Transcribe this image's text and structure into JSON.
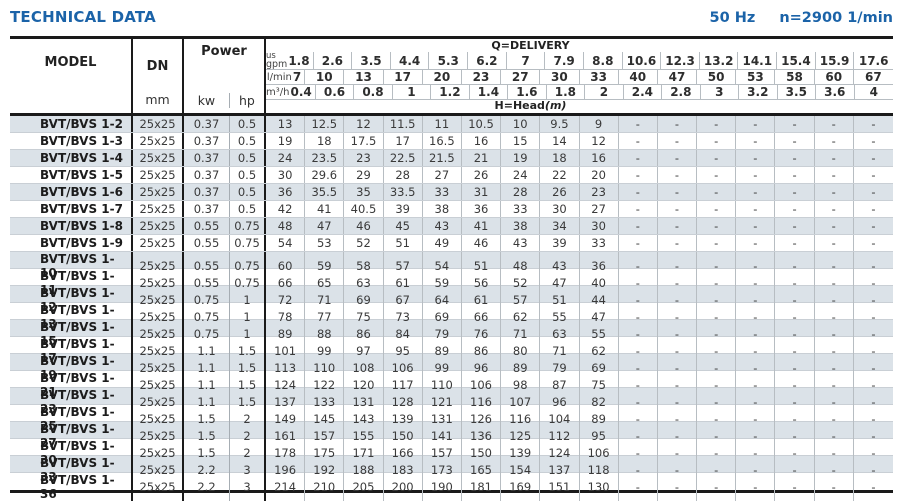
{
  "title": "TECHNICAL DATA",
  "frequency": "50 Hz",
  "speed": "n=2900 1/min",
  "colors": {
    "accent_blue": "#1b63a8",
    "row_stripe": "#dbe2e8",
    "border_dark": "#1a1a1a"
  },
  "table": {
    "model_header": "MODEL",
    "dn_header": "DN",
    "dn_unit": "mm",
    "power_header": "Power",
    "kw_label": "kw",
    "hp_label": "hp",
    "delivery_label": "Q=DELIVERY",
    "head_label": "H=Head",
    "head_unit": "(m)",
    "unit_rows": [
      {
        "label_top": "us",
        "label": "gpm",
        "values": [
          "1.8",
          "2.6",
          "3.5",
          "4.4",
          "5.3",
          "6.2",
          "7",
          "7.9",
          "8.8",
          "10.6",
          "12.3",
          "13.2",
          "14.1",
          "15.4",
          "15.9",
          "17.6"
        ]
      },
      {
        "label": "l/min",
        "values": [
          "7",
          "10",
          "13",
          "17",
          "20",
          "23",
          "27",
          "30",
          "33",
          "40",
          "47",
          "50",
          "53",
          "58",
          "60",
          "67"
        ]
      },
      {
        "label": "m³/h",
        "values": [
          "0.4",
          "0.6",
          "0.8",
          "1",
          "1.2",
          "1.4",
          "1.6",
          "1.8",
          "2",
          "2.4",
          "2.8",
          "3",
          "3.2",
          "3.5",
          "3.6",
          "4"
        ]
      }
    ],
    "rows": [
      {
        "model": "BVT/BVS 1-2",
        "dn": "25x25",
        "kw": "0.37",
        "hp": "0.5",
        "head": [
          "13",
          "12.5",
          "12",
          "11.5",
          "11",
          "10.5",
          "10",
          "9.5",
          "9",
          "-",
          "-",
          "-",
          "-",
          "-",
          "-",
          "-"
        ]
      },
      {
        "model": "BVT/BVS 1-3",
        "dn": "25x25",
        "kw": "0.37",
        "hp": "0.5",
        "head": [
          "19",
          "18",
          "17.5",
          "17",
          "16.5",
          "16",
          "15",
          "14",
          "12",
          "-",
          "-",
          "-",
          "-",
          "-",
          "-",
          "-"
        ]
      },
      {
        "model": "BVT/BVS 1-4",
        "dn": "25x25",
        "kw": "0.37",
        "hp": "0.5",
        "head": [
          "24",
          "23.5",
          "23",
          "22.5",
          "21.5",
          "21",
          "19",
          "18",
          "16",
          "-",
          "-",
          "-",
          "-",
          "-",
          "-",
          "-"
        ]
      },
      {
        "model": "BVT/BVS 1-5",
        "dn": "25x25",
        "kw": "0.37",
        "hp": "0.5",
        "head": [
          "30",
          "29.6",
          "29",
          "28",
          "27",
          "26",
          "24",
          "22",
          "20",
          "-",
          "-",
          "-",
          "-",
          "-",
          "-",
          "-"
        ]
      },
      {
        "model": "BVT/BVS 1-6",
        "dn": "25x25",
        "kw": "0.37",
        "hp": "0.5",
        "head": [
          "36",
          "35.5",
          "35",
          "33.5",
          "33",
          "31",
          "28",
          "26",
          "23",
          "-",
          "-",
          "-",
          "-",
          "-",
          "-",
          "-"
        ]
      },
      {
        "model": "BVT/BVS 1-7",
        "dn": "25x25",
        "kw": "0.37",
        "hp": "0.5",
        "head": [
          "42",
          "41",
          "40.5",
          "39",
          "38",
          "36",
          "33",
          "30",
          "27",
          "-",
          "-",
          "-",
          "-",
          "-",
          "-",
          "-"
        ]
      },
      {
        "model": "BVT/BVS 1-8",
        "dn": "25x25",
        "kw": "0.55",
        "hp": "0.75",
        "head": [
          "48",
          "47",
          "46",
          "45",
          "43",
          "41",
          "38",
          "34",
          "30",
          "-",
          "-",
          "-",
          "-",
          "-",
          "-",
          "-"
        ]
      },
      {
        "model": "BVT/BVS 1-9",
        "dn": "25x25",
        "kw": "0.55",
        "hp": "0.75",
        "head": [
          "54",
          "53",
          "52",
          "51",
          "49",
          "46",
          "43",
          "39",
          "33",
          "-",
          "-",
          "-",
          "-",
          "-",
          "-",
          "-"
        ]
      },
      {
        "model": "BVT/BVS 1-10",
        "dn": "25x25",
        "kw": "0.55",
        "hp": "0.75",
        "head": [
          "60",
          "59",
          "58",
          "57",
          "54",
          "51",
          "48",
          "43",
          "36",
          "-",
          "-",
          "-",
          "-",
          "-",
          "-",
          "-"
        ]
      },
      {
        "model": "BVT/BVS 1-11",
        "dn": "25x25",
        "kw": "0.55",
        "hp": "0.75",
        "head": [
          "66",
          "65",
          "63",
          "61",
          "59",
          "56",
          "52",
          "47",
          "40",
          "-",
          "-",
          "-",
          "-",
          "-",
          "-",
          "-"
        ]
      },
      {
        "model": "BVT/BVS 1-12",
        "dn": "25x25",
        "kw": "0.75",
        "hp": "1",
        "head": [
          "72",
          "71",
          "69",
          "67",
          "64",
          "61",
          "57",
          "51",
          "44",
          "-",
          "-",
          "-",
          "-",
          "-",
          "-",
          "-"
        ]
      },
      {
        "model": "BVT/BVS 1-13",
        "dn": "25x25",
        "kw": "0.75",
        "hp": "1",
        "head": [
          "78",
          "77",
          "75",
          "73",
          "69",
          "66",
          "62",
          "55",
          "47",
          "-",
          "-",
          "-",
          "-",
          "-",
          "-",
          "-"
        ]
      },
      {
        "model": "BVT/BVS 1-15",
        "dn": "25x25",
        "kw": "0.75",
        "hp": "1",
        "head": [
          "89",
          "88",
          "86",
          "84",
          "79",
          "76",
          "71",
          "63",
          "55",
          "-",
          "-",
          "-",
          "-",
          "-",
          "-",
          "-"
        ]
      },
      {
        "model": "BVT/BVS 1-17",
        "dn": "25x25",
        "kw": "1.1",
        "hp": "1.5",
        "head": [
          "101",
          "99",
          "97",
          "95",
          "89",
          "86",
          "80",
          "71",
          "62",
          "-",
          "-",
          "-",
          "-",
          "-",
          "-",
          "-"
        ]
      },
      {
        "model": "BVT/BVS 1-19",
        "dn": "25x25",
        "kw": "1.1",
        "hp": "1.5",
        "head": [
          "113",
          "110",
          "108",
          "106",
          "99",
          "96",
          "89",
          "79",
          "69",
          "-",
          "-",
          "-",
          "-",
          "-",
          "-",
          "-"
        ]
      },
      {
        "model": "BVT/BVS 1-21",
        "dn": "25x25",
        "kw": "1.1",
        "hp": "1.5",
        "head": [
          "124",
          "122",
          "120",
          "117",
          "110",
          "106",
          "98",
          "87",
          "75",
          "-",
          "-",
          "-",
          "-",
          "-",
          "-",
          "-"
        ]
      },
      {
        "model": "BVT/BVS 1-23",
        "dn": "25x25",
        "kw": "1.1",
        "hp": "1.5",
        "head": [
          "137",
          "133",
          "131",
          "128",
          "121",
          "116",
          "107",
          "96",
          "82",
          "-",
          "-",
          "-",
          "-",
          "-",
          "-",
          "-"
        ]
      },
      {
        "model": "BVT/BVS 1-25",
        "dn": "25x25",
        "kw": "1.5",
        "hp": "2",
        "head": [
          "149",
          "145",
          "143",
          "139",
          "131",
          "126",
          "116",
          "104",
          "89",
          "-",
          "-",
          "-",
          "-",
          "-",
          "-",
          "-"
        ]
      },
      {
        "model": "BVT/BVS 1-27",
        "dn": "25x25",
        "kw": "1.5",
        "hp": "2",
        "head": [
          "161",
          "157",
          "155",
          "150",
          "141",
          "136",
          "125",
          "112",
          "95",
          "-",
          "-",
          "-",
          "-",
          "-",
          "-",
          "-"
        ]
      },
      {
        "model": "BVT/BVS 1-30",
        "dn": "25x25",
        "kw": "1.5",
        "hp": "2",
        "head": [
          "178",
          "175",
          "171",
          "166",
          "157",
          "150",
          "139",
          "124",
          "106",
          "-",
          "-",
          "-",
          "-",
          "-",
          "-",
          "-"
        ]
      },
      {
        "model": "BVT/BVS 1-33",
        "dn": "25x25",
        "kw": "2.2",
        "hp": "3",
        "head": [
          "196",
          "192",
          "188",
          "183",
          "173",
          "165",
          "154",
          "137",
          "118",
          "-",
          "-",
          "-",
          "-",
          "-",
          "-",
          "-"
        ]
      },
      {
        "model": "BVT/BVS 1-36",
        "dn": "25x25",
        "kw": "2.2",
        "hp": "3",
        "head": [
          "214",
          "210",
          "205",
          "200",
          "190",
          "181",
          "169",
          "151",
          "130",
          "-",
          "-",
          "-",
          "-",
          "-",
          "-",
          "-"
        ]
      }
    ]
  }
}
